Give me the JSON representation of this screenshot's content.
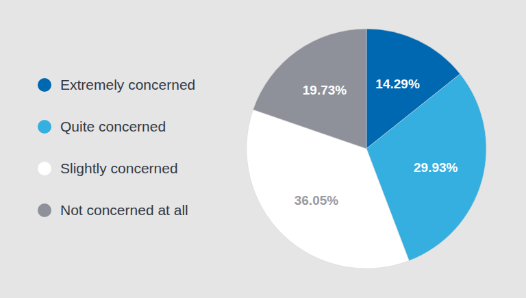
{
  "chart_data": {
    "type": "pie",
    "categories": [
      "Extremely concerned",
      "Quite concerned",
      "Slightly concerned",
      "Not concerned at all"
    ],
    "values": [
      14.29,
      29.93,
      36.05,
      19.73
    ],
    "value_labels": [
      "14.29%",
      "29.93%",
      "36.05%",
      "19.73%"
    ],
    "colors": [
      "#0068b1",
      "#34afdf",
      "#ffffff",
      "#8e9199"
    ],
    "data_labels": true,
    "legend": "left"
  }
}
